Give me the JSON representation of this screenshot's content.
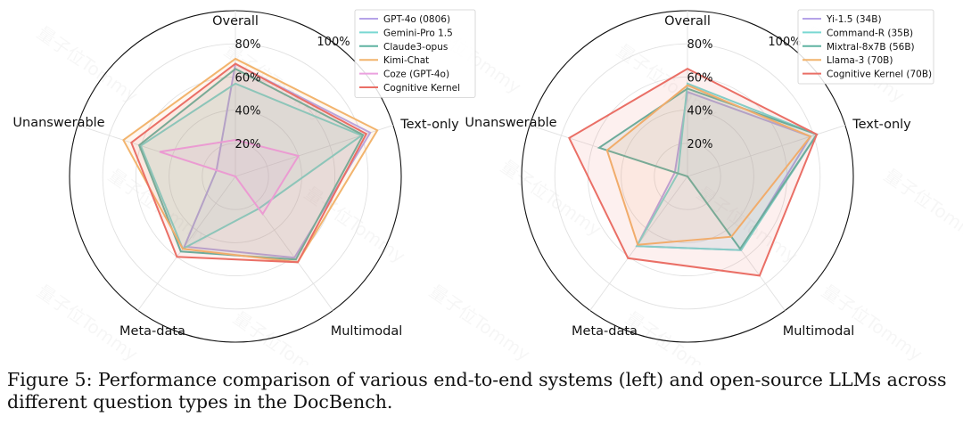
{
  "chart_data": [
    {
      "type": "radar",
      "axes": [
        "Overall",
        "Text-only",
        "Multimodal",
        "Meta-data",
        "Unanswerable"
      ],
      "rticks": [
        20,
        40,
        60,
        80,
        100
      ],
      "rtick_labels": [
        "20%",
        "40%",
        "60%",
        "80%",
        "100%"
      ],
      "rlim": [
        0,
        100
      ],
      "series": [
        {
          "name": "GPT-4o (0806)",
          "color": "#b5a3e8",
          "values": [
            67.9,
            85.5,
            60.6,
            52.3,
            12.0
          ]
        },
        {
          "name": "Gemini-Pro 1.5",
          "color": "#79d8d2",
          "values": [
            56.0,
            80.0,
            24.0,
            54.0,
            60.0
          ]
        },
        {
          "name": "Claude3-opus",
          "color": "#5fb3a2",
          "values": [
            64.9,
            81.0,
            62.0,
            56.0,
            61.0
          ]
        },
        {
          "name": "Kimi-Chat",
          "color": "#f2b46d",
          "values": [
            71.0,
            90.0,
            64.0,
            54.0,
            71.0
          ]
        },
        {
          "name": "Coze (GPT-4o)",
          "color": "#eba1df",
          "values": [
            22.0,
            40.0,
            28.0,
            0.0,
            48.0
          ]
        },
        {
          "name": "Cognitive Kernel",
          "color": "#ea6f66",
          "values": [
            68.0,
            83.0,
            64.0,
            60.0,
            66.0
          ]
        }
      ]
    },
    {
      "type": "radar",
      "axes": [
        "Overall",
        "Text-only",
        "Multimodal",
        "Meta-data",
        "Unanswerable"
      ],
      "rticks": [
        20,
        40,
        60,
        80,
        100
      ],
      "rtick_labels": [
        "20%",
        "40%",
        "60%",
        "80%",
        "100%"
      ],
      "rlim": [
        0,
        100
      ],
      "series": [
        {
          "name": "Yi-1.5 (34B)",
          "color": "#b5a3e8",
          "values": [
            51.0,
            78.0,
            55.0,
            52.0,
            8.0
          ]
        },
        {
          "name": "Command-R (35B)",
          "color": "#79d8d2",
          "values": [
            56.0,
            82.0,
            55.0,
            52.0,
            6.0
          ]
        },
        {
          "name": "Mixtral-8x7B (56B)",
          "color": "#5fb3a2",
          "values": [
            53.0,
            82.0,
            54.0,
            0.0,
            56.0
          ]
        },
        {
          "name": "Llama-3 (70B)",
          "color": "#f2b46d",
          "values": [
            55.0,
            78.0,
            45.0,
            51.0,
            51.0
          ]
        },
        {
          "name": "Cognitive Kernel (70B)",
          "color": "#ea6f66",
          "values": [
            65.0,
            82.0,
            74.0,
            61.0,
            75.0
          ]
        }
      ]
    }
  ],
  "watermark": "量子位Tommy",
  "caption": "Figure 5: Performance comparison of various end-to-end systems (left) and open-source LLMs across different question types in the DocBench."
}
